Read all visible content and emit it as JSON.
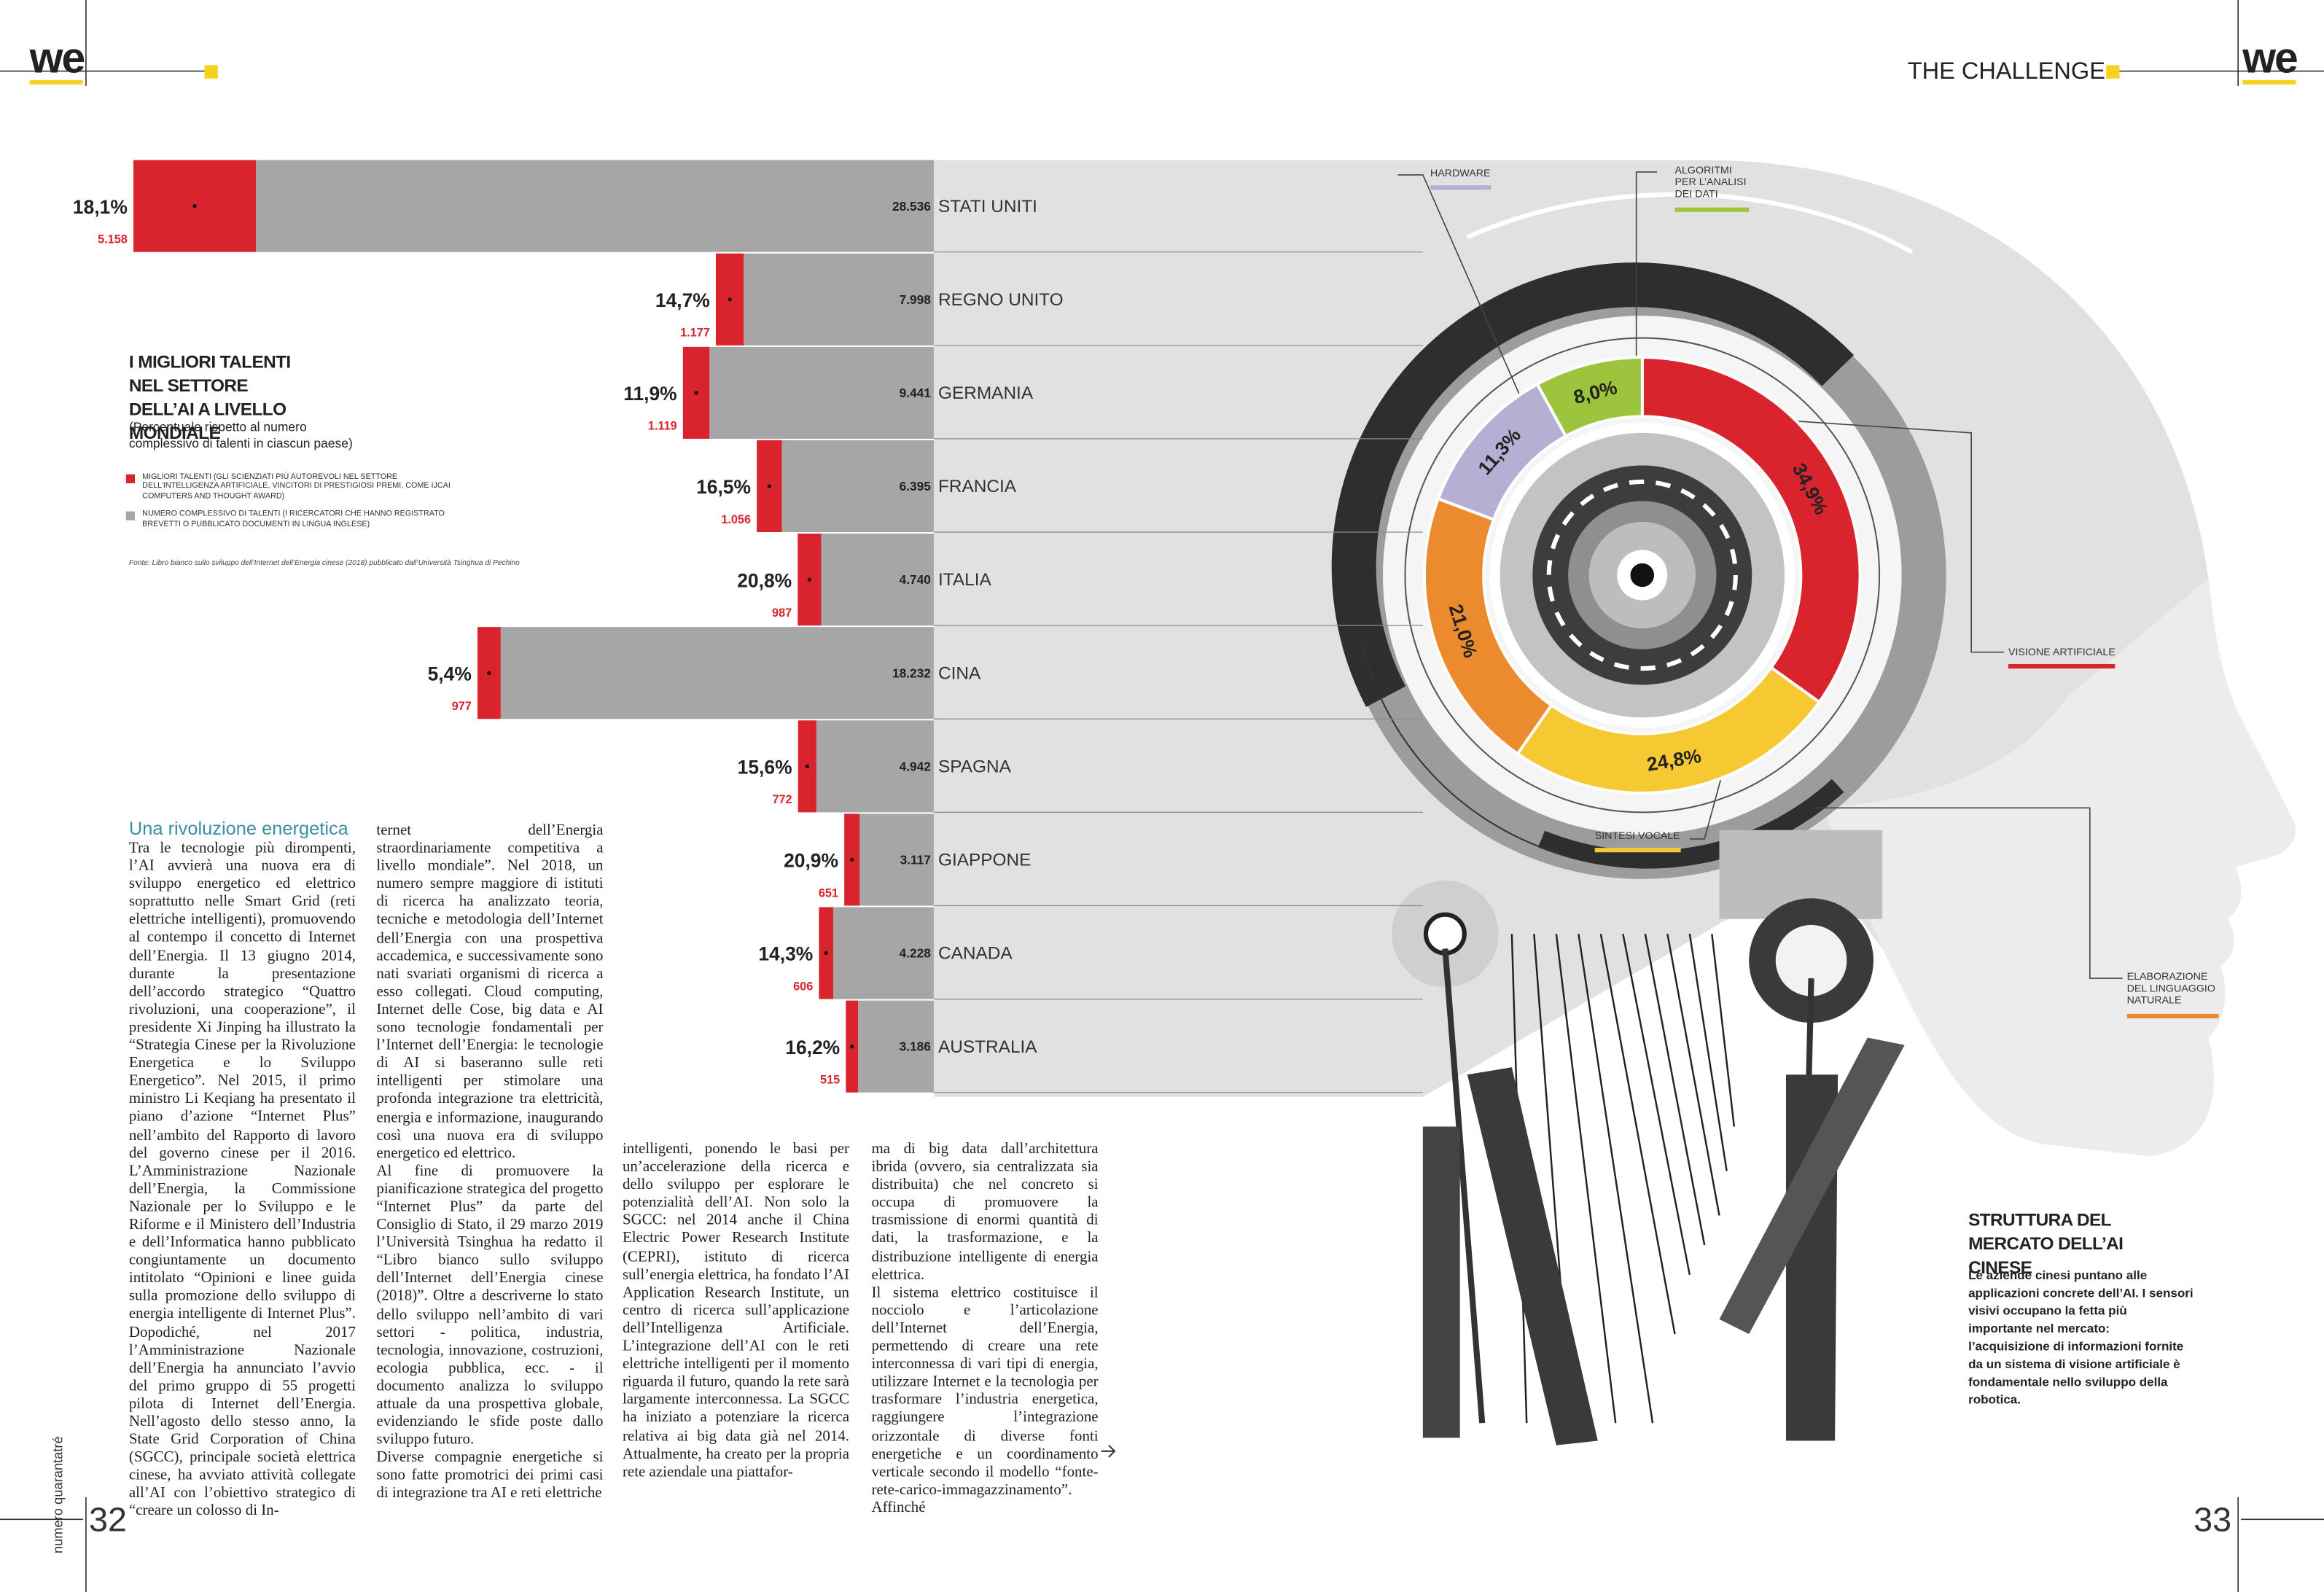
{
  "header": {
    "logo_left": "we",
    "section": "THE CHALLENGE",
    "logo_right": "we"
  },
  "footer": {
    "issue": "numero quarantatré",
    "page_left": "32",
    "page_right": "33"
  },
  "article": {
    "heading": "Una rivoluzione energetica",
    "columns": [
      [
        "Tra le tecnologie più dirompenti, l’AI avvierà una nuova era di sviluppo energetico ed elettrico soprattutto nelle Smart Grid (reti elettriche intelligenti), promuovendo al contempo il concetto di Internet dell’Energia. Il 13 giugno 2014, durante la presentazione dell’accordo strategico “Quattro rivoluzioni, una cooperazione”, il presidente Xi Jinping ha illustrato la “Strategia Cinese per la Rivoluzione Energetica e lo Sviluppo Energetico”. Nel 2015, il primo ministro Li Keqiang ha presentato il piano d’azione “Internet Plus” nell’ambito del Rapporto di lavoro del governo cinese per il 2016. L’Amministrazione Nazionale dell’Energia, la Commissione Nazionale per lo Sviluppo e le Riforme e il Ministero dell’Industria e dell’Informatica hanno pubblicato congiuntamente un documento intitolato “Opinioni e linee guida sulla promozione dello sviluppo di energia intelligente di Internet Plus”. Dopodiché, nel 2017 l’Amministrazione Nazionale dell’Energia ha annunciato l’avvio del primo gruppo di 55 progetti pilota di Internet dell’Energia. Nell’agosto dello stesso anno, la State Grid Corporation of China (SGCC), principale società elettrica cinese, ha avviato attività collegate all’AI con l’obiettivo strategico di “creare un colosso di In-"
      ],
      [
        "ternet dell’Energia straordinariamente competitiva a livello mondiale”. Nel 2018, un numero sempre maggiore di istituti di ricerca ha analizzato teoria, tecniche e metodologia dell’Internet dell’Energia con una prospettiva accademica, e successivamente sono nati svariati organismi di ricerca a esso collegati. Cloud computing, Internet delle Cose, big data e AI sono tecnologie fondamentali per l’Internet dell’Energia: le tecnologie di AI si baseranno sulle reti intelligenti per stimolare una profonda integrazione tra elettricità, energia e informazione, inaugurando così una nuova era di sviluppo energetico ed elettrico.",
        "Al fine di promuovere la pianificazione strategica del progetto “Internet Plus” da parte del Consiglio di Stato, il 29 marzo 2019 l’Università Tsinghua ha redatto il “Libro bianco sullo sviluppo dell’Internet dell’Energia cinese (2018)”. Oltre a descriverne lo stato dello sviluppo nell’ambito di vari settori - politica, industria, tecnologia, innovazione, costruzioni, ecologia pubblica, ecc. - il documento analizza lo sviluppo attuale da una prospettiva globale, evidenziando le sfide poste dallo sviluppo futuro.",
        "Diverse compagnie energetiche si sono fatte promotrici dei primi casi di integrazione tra AI e reti elettriche"
      ],
      [
        "intelligenti, ponendo le basi per un’accelerazione della ricerca e dello sviluppo per esplorare le potenzialità dell’AI. Non solo la SGCC: nel 2014 anche il China Electric Power Research Institute (CEPRI), istituto di ricerca sull’energia elettrica, ha fondato l’AI Application Research Institute, un centro di ricerca sull’applicazione dell’Intelligenza Artificiale. L’integrazione dell’AI con le reti elettriche intelligenti per il momento riguarda il futuro, quando la rete sarà largamente interconnessa. La SGCC ha iniziato a potenziare la ricerca relativa ai big data già nel 2014. Attualmente, ha creato per la propria rete aziendale una piattafor-"
      ],
      [
        "ma di big data dall’architettura ibrida (ovvero, sia centralizzata sia distribuita) che nel concreto si occupa di promuovere la trasmissione di enormi quantità di dati, la trasformazione, e la distribuzione intelligente di energia elettrica.",
        "Il sistema elettrico costituisce il nocciolo e l’articolazione dell’Internet dell’Energia, permettendo di creare una rete interconnessa di vari tipi di energia, utilizzare Internet e la tecnologia per trasformare l’industria energetica, raggiungere l’integrazione orizzontale di diverse fonti energetiche e un coordinamento verticale secondo il modello “fonte-rete-carico-immagazzinamento”. Affinché"
      ]
    ]
  },
  "chart_data": [
    {
      "type": "bar",
      "orientation": "horizontal",
      "title": "I MIGLIORI TALENTI NEL SETTORE DELL’AI A LIVELLO MONDIALE",
      "subtitle": "(Percentuale rispetto al numero complessivo di talenti in ciascun paese)",
      "source": "Fonte: Libro bianco sullo sviluppo dell’Internet dell’Energia cinese (2018) pubblicato dall’Università Tsinghua di Pechino",
      "categories": [
        "STATI UNITI",
        "REGNO UNITO",
        "GERMANIA",
        "FRANCIA",
        "ITALIA",
        "CINA",
        "SPAGNA",
        "GIAPPONE",
        "CANADA",
        "AUSTRALIA"
      ],
      "series": [
        {
          "name": "MIGLIORI TALENTI (GLI SCIENZIATI PIÙ AUTOREVOLI NEL SETTORE DELL’INTELLIGENZA ARTIFICIALE, VINCITORI DI PRESTIGIOSI PREMI, COME IJCAI COMPUTERS AND THOUGHT AWARD)",
          "color": "#d9232d",
          "values": [
            5158,
            1177,
            1119,
            1056,
            987,
            977,
            772,
            651,
            606,
            515
          ],
          "value_labels": [
            "5.158",
            "1.177",
            "1.119",
            "1.056",
            "987",
            "977",
            "772",
            "651",
            "606",
            "515"
          ]
        },
        {
          "name": "NUMERO COMPLESSIVO DI TALENTI (I RICERCATORI CHE HANNO REGISTRATO BREVETTI O PUBBLICATO DOCUMENTI IN LINGUA INGLESE)",
          "color": "#a6a6a6",
          "values": [
            28536,
            7998,
            9441,
            6395,
            4740,
            18232,
            4942,
            3117,
            4228,
            3186
          ],
          "value_labels": [
            "28.536",
            "7.998",
            "9.441",
            "6.395",
            "4.740",
            "18.232",
            "4.942",
            "3.117",
            "4.228",
            "3.186"
          ]
        }
      ],
      "shares": {
        "values": [
          18.1,
          14.7,
          11.9,
          16.5,
          20.8,
          5.4,
          15.6,
          20.9,
          14.3,
          16.2
        ],
        "value_labels": [
          "18,1%",
          "14,7%",
          "11,9%",
          "16,5%",
          "20,8%",
          "5,4%",
          "15,6%",
          "20,9%",
          "14,3%",
          "16,2%"
        ]
      }
    },
    {
      "type": "pie",
      "donut": true,
      "title": "STRUTTURA DEL MERCATO DELL’AI CINESE",
      "description": "Le aziende cinesi puntano alle applicazioni concrete dell’AI. I sensori visivi occupano la fetta più importante nel mercato: l’acquisizione di informazioni fornite da un sistema di visione artificiale è fondamentale nello sviluppo della robotica.",
      "categories": [
        "VISIONE ARTIFICIALE",
        "SINTESI VOCALE",
        "ELABORAZIONE DEL LINGUAGGIO NATURALE",
        "HARDWARE",
        "ALGORITMI PER L’ANALISI DEI DATI"
      ],
      "values": [
        34.9,
        24.8,
        21.0,
        11.3,
        8.0
      ],
      "value_labels": [
        "34,9%",
        "24,8%",
        "21,0%",
        "11,3%",
        "8,0%"
      ],
      "colors": [
        "#d9232d",
        "#f6c933",
        "#ec8a2e",
        "#b5b0d3",
        "#9cc43c"
      ]
    }
  ]
}
